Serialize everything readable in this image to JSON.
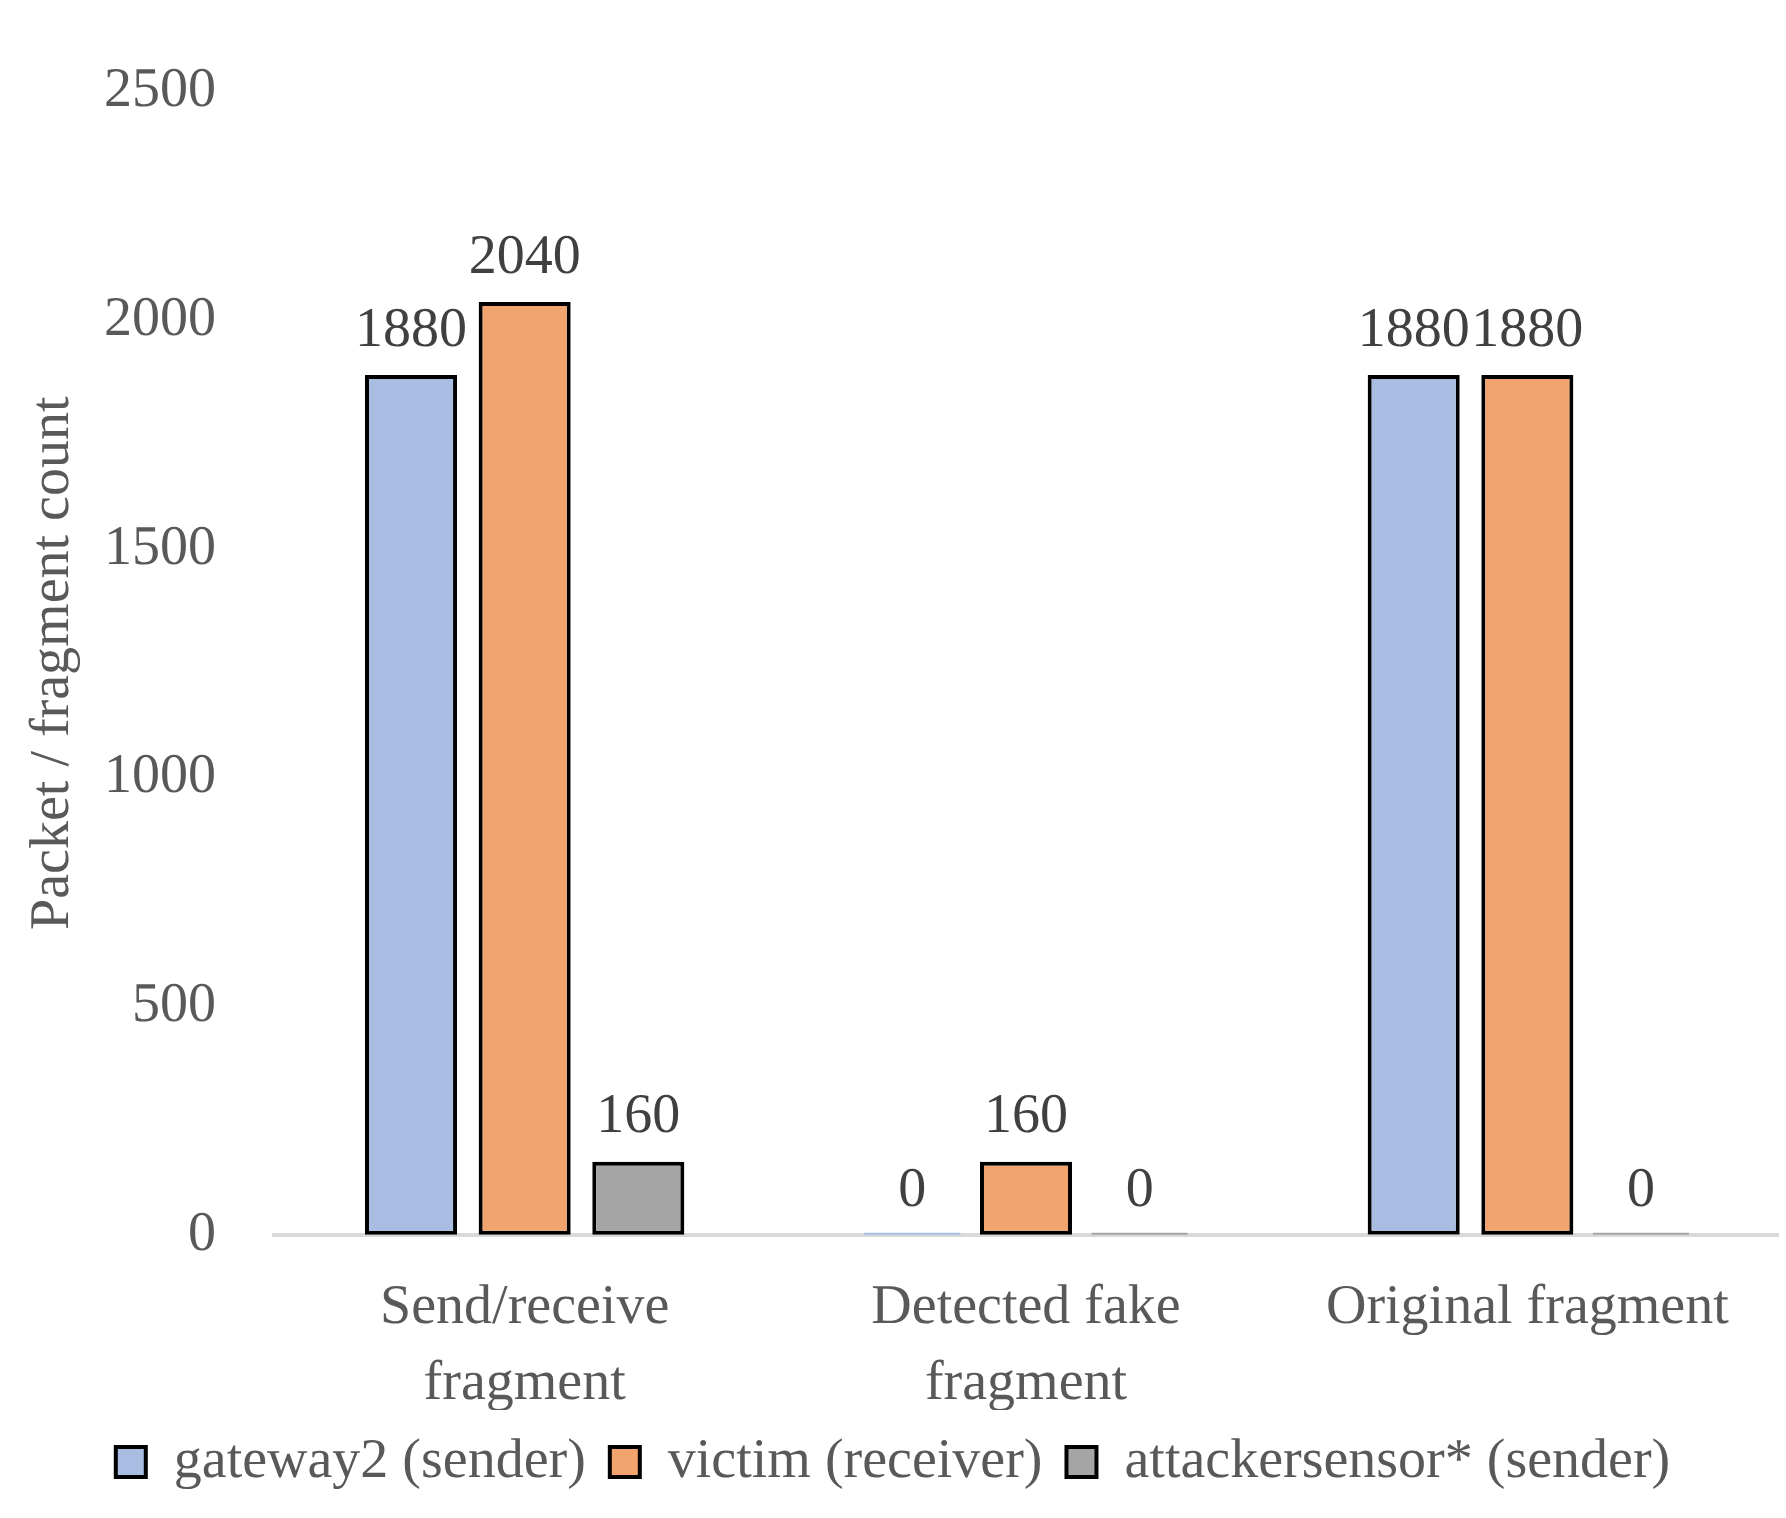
{
  "chart_data": {
    "type": "bar",
    "ylabel": "Packet / fragment count",
    "categories": [
      "Send/receive fragment",
      "Detected fake fragment",
      "Original fragment"
    ],
    "series": [
      {
        "name": "gateway2 (sender)",
        "color": "#a9bde3",
        "values": [
          1880,
          0,
          1880
        ]
      },
      {
        "name": "victim (receiver)",
        "color": "#f2a46e",
        "values": [
          2040,
          160,
          1880
        ]
      },
      {
        "name": "attackersensor* (sender)",
        "color": "#a5a5a5",
        "values": [
          160,
          0,
          0
        ]
      }
    ],
    "ylim": [
      0,
      2500
    ],
    "yticks": [
      0,
      500,
      1000,
      1500,
      2000,
      2500
    ],
    "grid": false,
    "legend": "bottom",
    "data_labels": true
  }
}
